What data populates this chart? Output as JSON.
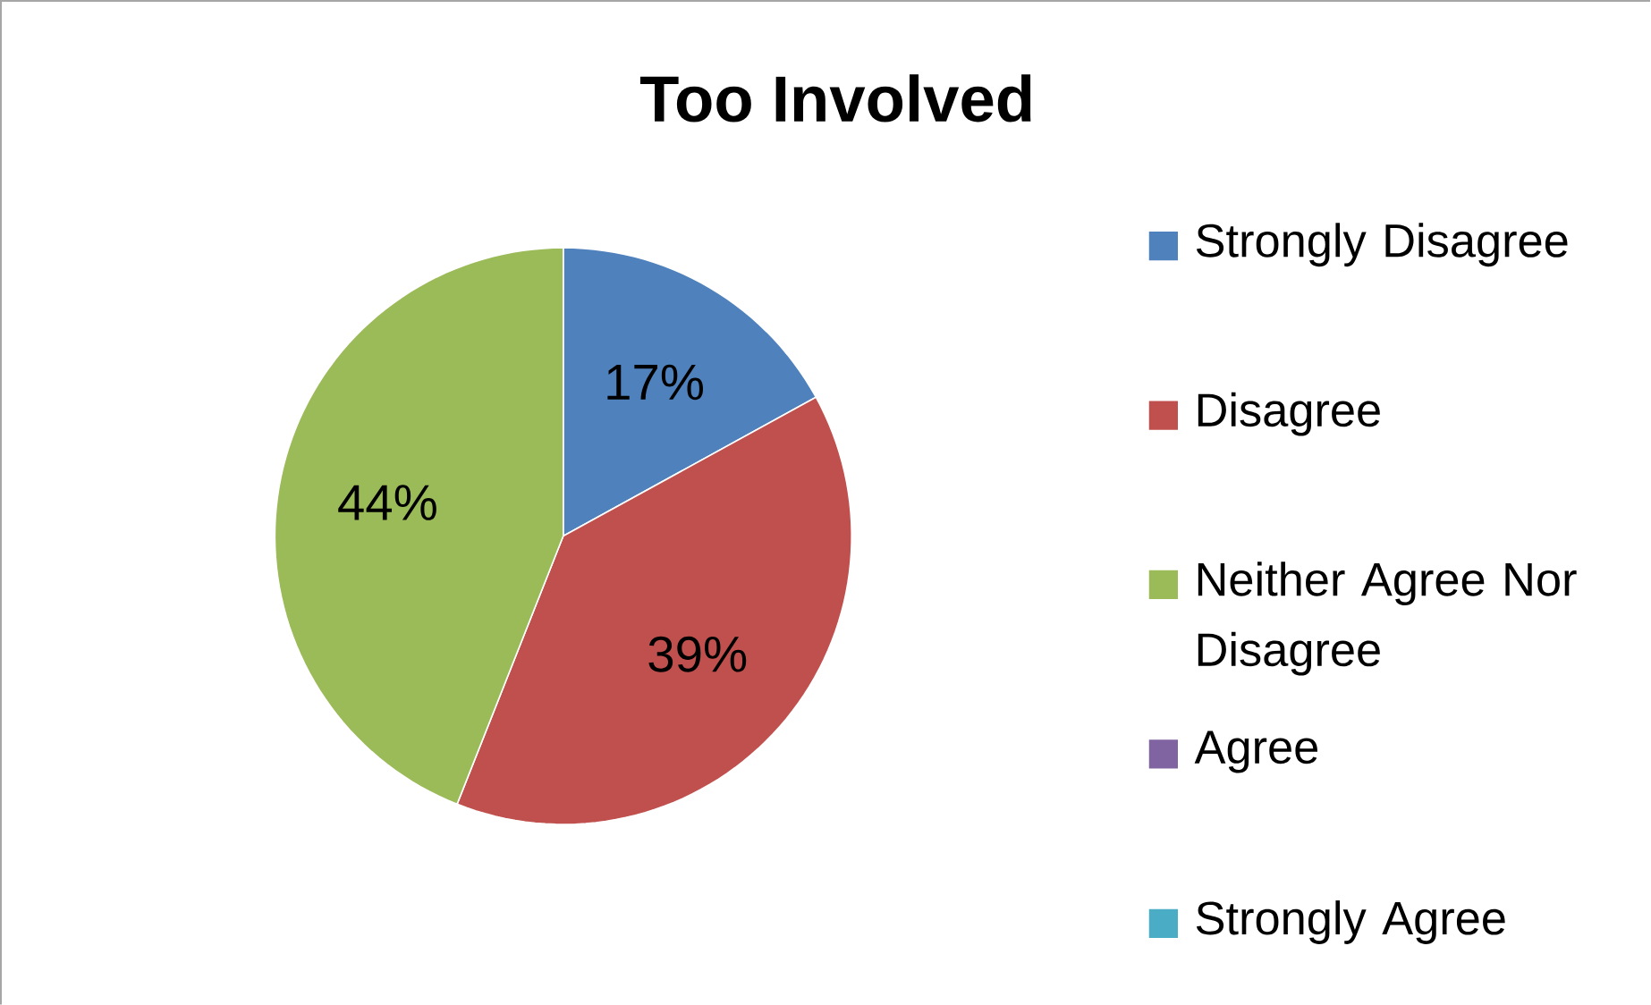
{
  "chart_data": {
    "type": "pie",
    "title": "Too Involved",
    "categories": [
      "Strongly Disagree",
      "Disagree",
      "Neither Agree Nor Disagree",
      "Agree",
      "Strongly Agree"
    ],
    "values": [
      17,
      39,
      44,
      0,
      0
    ],
    "value_labels": [
      "17%",
      "39%",
      "44%",
      null,
      null
    ],
    "colors": [
      "#4f81bd",
      "#c0504d",
      "#9bbb59",
      "#8064a2",
      "#4bacc6"
    ],
    "legend": "right"
  }
}
